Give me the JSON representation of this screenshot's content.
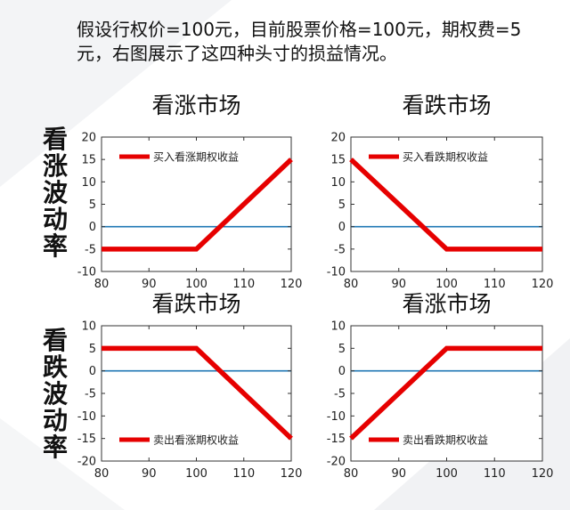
{
  "intro_text": "假设行权价=100元，目前股票价格=100元，期权费=5元，右图展示了这四种头寸的损益情况。",
  "row_labels": [
    [
      "看",
      "涨",
      "波",
      "动",
      "率"
    ],
    [
      "看",
      "跌",
      "波",
      "动",
      "率"
    ]
  ],
  "colors": {
    "payoff": "#e60000",
    "zero_line": "#1f77b4",
    "axis": "#333333"
  },
  "chart_data": [
    {
      "type": "line",
      "title": "看涨市场",
      "xlim": [
        80,
        120
      ],
      "ylim": [
        -10,
        20
      ],
      "xticks": [
        80,
        90,
        100,
        110,
        120
      ],
      "yticks": [
        -10,
        -5,
        0,
        5,
        10,
        15,
        20
      ],
      "legend_location": "top-left",
      "series": [
        {
          "name": "买入看涨期权收益",
          "x": [
            80,
            100,
            120
          ],
          "y": [
            -5,
            -5,
            15
          ]
        }
      ]
    },
    {
      "type": "line",
      "title": "看跌市场",
      "xlim": [
        80,
        120
      ],
      "ylim": [
        -10,
        20
      ],
      "xticks": [
        80,
        90,
        100,
        110,
        120
      ],
      "yticks": [
        -10,
        -5,
        0,
        5,
        10,
        15,
        20
      ],
      "legend_location": "top-right",
      "series": [
        {
          "name": "买入看跌期权收益",
          "x": [
            80,
            100,
            120
          ],
          "y": [
            15,
            -5,
            -5
          ]
        }
      ]
    },
    {
      "type": "line",
      "title": "看跌市场",
      "xlim": [
        80,
        120
      ],
      "ylim": [
        -20,
        10
      ],
      "xticks": [
        80,
        90,
        100,
        110,
        120
      ],
      "yticks": [
        -20,
        -15,
        -10,
        -5,
        0,
        5,
        10
      ],
      "legend_location": "bottom-left",
      "series": [
        {
          "name": "卖出看涨期权收益",
          "x": [
            80,
            100,
            120
          ],
          "y": [
            5,
            5,
            -15
          ]
        }
      ]
    },
    {
      "type": "line",
      "title": "看涨市场",
      "xlim": [
        80,
        120
      ],
      "ylim": [
        -20,
        10
      ],
      "xticks": [
        80,
        90,
        100,
        110,
        120
      ],
      "yticks": [
        -20,
        -15,
        -10,
        -5,
        0,
        5,
        10
      ],
      "legend_location": "bottom-right",
      "series": [
        {
          "name": "卖出看跌期权收益",
          "x": [
            80,
            100,
            120
          ],
          "y": [
            -15,
            5,
            5
          ]
        }
      ]
    }
  ]
}
